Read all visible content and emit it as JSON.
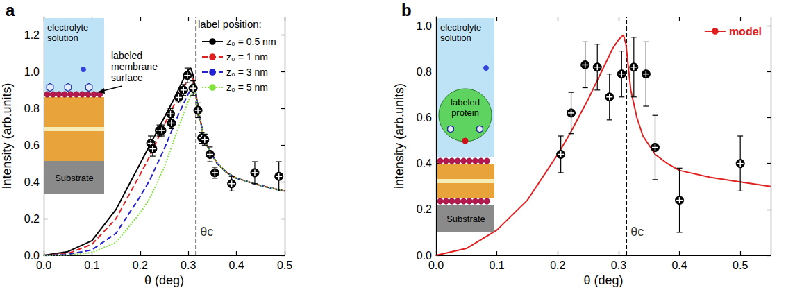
{
  "chart_data": [
    {
      "type": "line",
      "panel_label": "a",
      "x_label": "θ (deg)",
      "y_label": "Intensity (arb.units)",
      "xlim": [
        0,
        0.5
      ],
      "xticks": [
        {
          "value": 0,
          "label": "0.0"
        },
        0.1,
        0.2,
        0.3,
        0.4,
        0.5
      ],
      "ylim": [
        0,
        1.3
      ],
      "yticks": [
        {
          "value": 0,
          "label": "0.0"
        },
        0.2,
        0.4,
        0.6,
        0.8,
        {
          "value": 1,
          "label": "1.0"
        },
        1.2
      ],
      "grid": false,
      "legend": "upper right",
      "legend_title": "label position:",
      "critical_angle": {
        "x": 0.316,
        "label": "θc"
      },
      "inset": {
        "solution": "electrolyte solution",
        "label": "labeled membrane surface",
        "substrate": "Substrate"
      },
      "series": [
        {
          "type": "line",
          "name": "z₀ = 0.5 nm",
          "color": "#000000",
          "line_style": "solid",
          "x": [
            0,
            0.05,
            0.1,
            0.15,
            0.2,
            0.22,
            0.25,
            0.27,
            0.29,
            0.3,
            0.305,
            0.31,
            0.315,
            0.32,
            0.33,
            0.34,
            0.36,
            0.38,
            0.4,
            0.45,
            0.5
          ],
          "values": [
            0,
            0.02,
            0.08,
            0.25,
            0.5,
            0.6,
            0.75,
            0.85,
            0.96,
            1.01,
            1.02,
            0.98,
            0.9,
            0.8,
            0.67,
            0.59,
            0.5,
            0.45,
            0.42,
            0.38,
            0.35
          ]
        },
        {
          "type": "line",
          "name": "z₀ = 1 nm",
          "color": "#e02020",
          "line_style": "dashed",
          "x": [
            0,
            0.05,
            0.1,
            0.15,
            0.2,
            0.22,
            0.25,
            0.28,
            0.3,
            0.305,
            0.31,
            0.315,
            0.32,
            0.33,
            0.34,
            0.36,
            0.38,
            0.4,
            0.45,
            0.5
          ],
          "values": [
            0,
            0.01,
            0.06,
            0.2,
            0.44,
            0.54,
            0.71,
            0.87,
            0.96,
            0.98,
            0.96,
            0.9,
            0.8,
            0.67,
            0.59,
            0.5,
            0.45,
            0.42,
            0.38,
            0.35
          ]
        },
        {
          "type": "line",
          "name": "z₀ = 3 nm",
          "color": "#2222d0",
          "line_style": "dashed",
          "x": [
            0,
            0.05,
            0.1,
            0.15,
            0.2,
            0.22,
            0.25,
            0.28,
            0.3,
            0.31,
            0.315,
            0.32,
            0.33,
            0.34,
            0.36,
            0.38,
            0.4,
            0.45,
            0.5
          ],
          "values": [
            0,
            0.005,
            0.03,
            0.12,
            0.32,
            0.41,
            0.58,
            0.77,
            0.88,
            0.92,
            0.89,
            0.8,
            0.67,
            0.59,
            0.5,
            0.45,
            0.42,
            0.38,
            0.35
          ]
        },
        {
          "type": "line",
          "name": "z₀ = 5 nm",
          "color": "#84e040",
          "line_style": "dotted",
          "x": [
            0,
            0.05,
            0.1,
            0.15,
            0.2,
            0.22,
            0.25,
            0.28,
            0.3,
            0.31,
            0.315,
            0.32,
            0.33,
            0.34,
            0.36,
            0.38,
            0.4,
            0.45,
            0.5
          ],
          "values": [
            0,
            0.002,
            0.015,
            0.07,
            0.23,
            0.31,
            0.48,
            0.7,
            0.84,
            0.9,
            0.88,
            0.8,
            0.67,
            0.59,
            0.5,
            0.45,
            0.42,
            0.38,
            0.35
          ]
        },
        {
          "type": "scatter",
          "color": "#000000",
          "marker": "circled_cross",
          "x": [
            0.222,
            0.226,
            0.24,
            0.245,
            0.263,
            0.265,
            0.28,
            0.29,
            0.298,
            0.31,
            0.32,
            0.328,
            0.334,
            0.345,
            0.355,
            0.39,
            0.438,
            0.488
          ],
          "values": [
            0.61,
            0.58,
            0.68,
            0.68,
            0.77,
            0.72,
            0.86,
            0.9,
            0.98,
            0.91,
            0.79,
            0.64,
            0.63,
            0.55,
            0.45,
            0.39,
            0.45,
            0.43
          ],
          "errors": [
            0.04,
            0.04,
            0.03,
            0.03,
            0.03,
            0.03,
            0.03,
            0.03,
            0.04,
            0.04,
            0.04,
            0.03,
            0.03,
            0.04,
            0.03,
            0.04,
            0.06,
            0.08
          ]
        }
      ]
    },
    {
      "type": "line",
      "panel_label": "b",
      "x_label": "θ (deg)",
      "y_label": "intensity (arb.units)",
      "xlim": [
        0,
        0.55
      ],
      "xticks": [
        {
          "value": 0,
          "label": "0.0"
        },
        0.1,
        0.2,
        0.3,
        0.4,
        0.5
      ],
      "ylim": [
        0,
        1.04
      ],
      "yticks": [
        {
          "value": 0,
          "label": "0.0"
        },
        0.2,
        0.4,
        0.6,
        0.8,
        {
          "value": 1,
          "label": "1.0"
        }
      ],
      "grid": false,
      "legend": "upper right",
      "critical_angle": {
        "x": 0.313,
        "label": "θc"
      },
      "inset": {
        "solution": "electrolyte solution",
        "label": "labeled protein",
        "substrate": "Substrate"
      },
      "series": [
        {
          "type": "line",
          "name": "model",
          "color": "#e02020",
          "line_style": "solid",
          "x": [
            0,
            0.05,
            0.1,
            0.15,
            0.2,
            0.22,
            0.25,
            0.27,
            0.29,
            0.3,
            0.308,
            0.312,
            0.316,
            0.32,
            0.33,
            0.34,
            0.36,
            0.38,
            0.4,
            0.45,
            0.5,
            0.55
          ],
          "values": [
            0,
            0.03,
            0.11,
            0.24,
            0.44,
            0.53,
            0.68,
            0.79,
            0.9,
            0.94,
            0.96,
            0.92,
            0.82,
            0.72,
            0.6,
            0.52,
            0.44,
            0.4,
            0.37,
            0.34,
            0.32,
            0.3
          ]
        },
        {
          "type": "scatter",
          "color": "#000000",
          "marker": "circled_cross",
          "x": [
            0.205,
            0.222,
            0.245,
            0.265,
            0.285,
            0.305,
            0.325,
            0.345,
            0.36,
            0.4,
            0.5
          ],
          "values": [
            0.44,
            0.62,
            0.83,
            0.82,
            0.69,
            0.79,
            0.82,
            0.79,
            0.47,
            0.24,
            0.4
          ],
          "errors": [
            0.08,
            0.09,
            0.1,
            0.1,
            0.1,
            0.1,
            0.13,
            0.14,
            0.14,
            0.14,
            0.12
          ]
        }
      ]
    }
  ]
}
